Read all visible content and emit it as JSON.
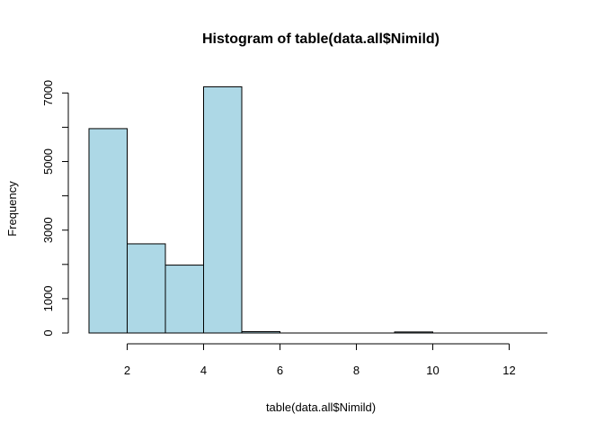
{
  "chart_data": {
    "type": "bar",
    "title": "Histogram of table(data.all$Nimild)",
    "xlabel": "table(data.all$Nimild)",
    "ylabel": "Frequency",
    "bins": [
      {
        "x0": 1,
        "x1": 2,
        "value": 5960
      },
      {
        "x0": 2,
        "x1": 3,
        "value": 2600
      },
      {
        "x0": 3,
        "x1": 4,
        "value": 1980
      },
      {
        "x0": 4,
        "x1": 5,
        "value": 7180
      },
      {
        "x0": 5,
        "x1": 6,
        "value": 40
      },
      {
        "x0": 6,
        "x1": 7,
        "value": 0
      },
      {
        "x0": 7,
        "x1": 8,
        "value": 0
      },
      {
        "x0": 8,
        "x1": 9,
        "value": 0
      },
      {
        "x0": 9,
        "x1": 10,
        "value": 30
      },
      {
        "x0": 10,
        "x1": 11,
        "value": 0
      },
      {
        "x0": 11,
        "x1": 12,
        "value": 0
      },
      {
        "x0": 12,
        "x1": 13,
        "value": 0
      }
    ],
    "xlim": [
      1,
      13
    ],
    "ylim": [
      0,
      7180
    ],
    "x_ticks": [
      2,
      4,
      6,
      8,
      10,
      12
    ],
    "y_ticks": [
      0,
      1000,
      2000,
      3000,
      4000,
      5000,
      6000,
      7000
    ],
    "y_tick_labels": [
      "0",
      "1000",
      "3000",
      "5000",
      "7000"
    ],
    "bar_fill": "#add8e6",
    "bar_stroke": "#000000",
    "grid": false
  }
}
